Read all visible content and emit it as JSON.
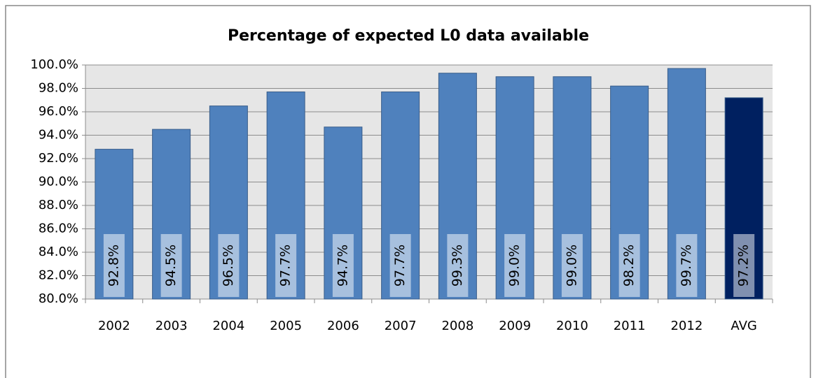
{
  "chart_data": {
    "type": "bar",
    "title": "Percentage of expected L0 data available",
    "categories": [
      "2002",
      "2003",
      "2004",
      "2005",
      "2006",
      "2007",
      "2008",
      "2009",
      "2010",
      "2011",
      "2012",
      "AVG"
    ],
    "values": [
      92.8,
      94.5,
      96.5,
      97.7,
      94.7,
      97.7,
      99.3,
      99.0,
      99.0,
      98.2,
      99.7,
      97.2
    ],
    "value_labels": [
      "92.8%",
      "94.5%",
      "96.5%",
      "97.7%",
      "94.7%",
      "97.7%",
      "99.3%",
      "99.0%",
      "99.0%",
      "98.2%",
      "99.7%",
      "97.2%"
    ],
    "colors": [
      "#4f81bd",
      "#4f81bd",
      "#4f81bd",
      "#4f81bd",
      "#4f81bd",
      "#4f81bd",
      "#4f81bd",
      "#4f81bd",
      "#4f81bd",
      "#4f81bd",
      "#4f81bd",
      "#002060"
    ],
    "ylim": [
      80,
      100
    ],
    "yticks": [
      {
        "value": 80,
        "label": "80.0%"
      },
      {
        "value": 82,
        "label": "82.0%"
      },
      {
        "value": 84,
        "label": "84.0%"
      },
      {
        "value": 86,
        "label": "86.0%"
      },
      {
        "value": 88,
        "label": "88.0%"
      },
      {
        "value": 90,
        "label": "90.0%"
      },
      {
        "value": 92,
        "label": "92.0%"
      },
      {
        "value": 94,
        "label": "94.0%"
      },
      {
        "value": 96,
        "label": "96.0%"
      },
      {
        "value": 98,
        "label": "98.0%"
      },
      {
        "value": 100,
        "label": "100.0%"
      }
    ],
    "grid": true
  }
}
